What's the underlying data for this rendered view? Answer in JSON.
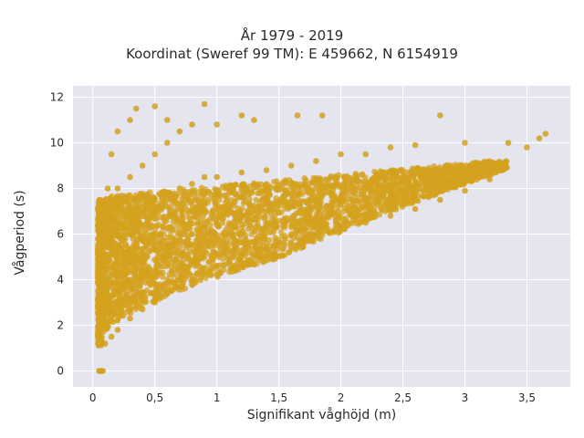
{
  "chart_data": {
    "type": "scatter",
    "title_lines": [
      "År 1979 - 2019",
      "Koordinat (Sweref 99 TM): E 459662, N 6154919"
    ],
    "xlabel": "Signifikant våghöjd (m)",
    "ylabel": "Vågperiod (s)",
    "xlim": [
      -0.16,
      3.85
    ],
    "ylim": [
      -0.7,
      12.5
    ],
    "x_ticks": [
      0,
      0.5,
      1,
      1.5,
      2,
      2.5,
      3,
      3.5
    ],
    "x_tick_labels": [
      "0",
      "0,5",
      "1",
      "1,5",
      "2",
      "2,5",
      "3",
      "3,5"
    ],
    "y_ticks": [
      0,
      2,
      4,
      6,
      8,
      10,
      12
    ],
    "y_tick_labels": [
      "0",
      "2",
      "4",
      "6",
      "8",
      "10",
      "12"
    ],
    "grid": true,
    "marker_color": "#d4a11e",
    "plot_bg": "#e5e5f0",
    "grid_color": "#ffffff",
    "point_cloud": [
      {
        "x": 0.05,
        "y": 0.0
      },
      {
        "x": 0.06,
        "y": 0.0
      },
      {
        "x": 0.07,
        "y": 0.0
      },
      {
        "x": 0.08,
        "y": 0.0
      },
      {
        "x": 0.04,
        "y": 1.6
      },
      {
        "x": 0.05,
        "y": 2.5
      },
      {
        "x": 0.06,
        "y": 4.0
      },
      {
        "x": 0.05,
        "y": 6.0
      },
      {
        "x": 0.06,
        "y": 7.5
      },
      {
        "x": 0.1,
        "y": 1.2
      },
      {
        "x": 0.1,
        "y": 2.0
      },
      {
        "x": 0.1,
        "y": 3.5
      },
      {
        "x": 0.1,
        "y": 5.0
      },
      {
        "x": 0.1,
        "y": 7.0
      },
      {
        "x": 0.12,
        "y": 8.0
      },
      {
        "x": 0.15,
        "y": 1.5
      },
      {
        "x": 0.15,
        "y": 3.0
      },
      {
        "x": 0.15,
        "y": 5.5
      },
      {
        "x": 0.15,
        "y": 7.5
      },
      {
        "x": 0.15,
        "y": 9.5
      },
      {
        "x": 0.2,
        "y": 1.8
      },
      {
        "x": 0.2,
        "y": 3.5
      },
      {
        "x": 0.2,
        "y": 6.0
      },
      {
        "x": 0.2,
        "y": 8.0
      },
      {
        "x": 0.2,
        "y": 10.5
      },
      {
        "x": 0.3,
        "y": 2.3
      },
      {
        "x": 0.3,
        "y": 4.0
      },
      {
        "x": 0.3,
        "y": 6.5
      },
      {
        "x": 0.3,
        "y": 8.5
      },
      {
        "x": 0.3,
        "y": 11.0
      },
      {
        "x": 0.4,
        "y": 2.7
      },
      {
        "x": 0.4,
        "y": 5.0
      },
      {
        "x": 0.4,
        "y": 7.0
      },
      {
        "x": 0.4,
        "y": 9.0
      },
      {
        "x": 0.35,
        "y": 11.5
      },
      {
        "x": 0.5,
        "y": 3.0
      },
      {
        "x": 0.5,
        "y": 5.5
      },
      {
        "x": 0.5,
        "y": 7.5
      },
      {
        "x": 0.5,
        "y": 9.5
      },
      {
        "x": 0.5,
        "y": 11.6
      },
      {
        "x": 0.6,
        "y": 3.4
      },
      {
        "x": 0.6,
        "y": 5.5
      },
      {
        "x": 0.6,
        "y": 7.8
      },
      {
        "x": 0.6,
        "y": 10.0
      },
      {
        "x": 0.6,
        "y": 11.0
      },
      {
        "x": 0.7,
        "y": 3.7
      },
      {
        "x": 0.7,
        "y": 6.0
      },
      {
        "x": 0.7,
        "y": 8.0
      },
      {
        "x": 0.7,
        "y": 10.5
      },
      {
        "x": 0.8,
        "y": 4.0
      },
      {
        "x": 0.8,
        "y": 6.0
      },
      {
        "x": 0.8,
        "y": 8.2
      },
      {
        "x": 0.8,
        "y": 10.8
      },
      {
        "x": 0.9,
        "y": 4.3
      },
      {
        "x": 0.9,
        "y": 6.3
      },
      {
        "x": 0.9,
        "y": 8.5
      },
      {
        "x": 0.9,
        "y": 11.7
      },
      {
        "x": 1.0,
        "y": 4.6
      },
      {
        "x": 1.0,
        "y": 6.5
      },
      {
        "x": 1.0,
        "y": 8.5
      },
      {
        "x": 1.0,
        "y": 10.8
      },
      {
        "x": 1.2,
        "y": 5.0
      },
      {
        "x": 1.2,
        "y": 6.8
      },
      {
        "x": 1.2,
        "y": 8.7
      },
      {
        "x": 1.2,
        "y": 11.2
      },
      {
        "x": 1.4,
        "y": 5.3
      },
      {
        "x": 1.4,
        "y": 7.0
      },
      {
        "x": 1.4,
        "y": 8.8
      },
      {
        "x": 1.3,
        "y": 11.0
      },
      {
        "x": 1.6,
        "y": 5.6
      },
      {
        "x": 1.6,
        "y": 7.2
      },
      {
        "x": 1.6,
        "y": 9.0
      },
      {
        "x": 1.65,
        "y": 11.2
      },
      {
        "x": 1.8,
        "y": 5.9
      },
      {
        "x": 1.8,
        "y": 7.4
      },
      {
        "x": 1.8,
        "y": 9.2
      },
      {
        "x": 1.85,
        "y": 11.2
      },
      {
        "x": 2.0,
        "y": 6.2
      },
      {
        "x": 2.0,
        "y": 7.5
      },
      {
        "x": 2.0,
        "y": 9.5
      },
      {
        "x": 2.2,
        "y": 6.5
      },
      {
        "x": 2.2,
        "y": 7.6
      },
      {
        "x": 2.2,
        "y": 9.5
      },
      {
        "x": 2.4,
        "y": 6.8
      },
      {
        "x": 2.4,
        "y": 7.8
      },
      {
        "x": 2.4,
        "y": 9.8
      },
      {
        "x": 2.6,
        "y": 7.1
      },
      {
        "x": 2.6,
        "y": 8.0
      },
      {
        "x": 2.6,
        "y": 9.9
      },
      {
        "x": 2.8,
        "y": 7.5
      },
      {
        "x": 2.8,
        "y": 8.2
      },
      {
        "x": 2.8,
        "y": 11.2
      },
      {
        "x": 3.0,
        "y": 7.9
      },
      {
        "x": 3.0,
        "y": 8.5
      },
      {
        "x": 3.0,
        "y": 10.0
      },
      {
        "x": 3.2,
        "y": 8.4
      },
      {
        "x": 3.2,
        "y": 9.0
      },
      {
        "x": 3.3,
        "y": 8.8
      },
      {
        "x": 3.35,
        "y": 10.0
      },
      {
        "x": 3.5,
        "y": 9.8
      },
      {
        "x": 3.6,
        "y": 10.2
      },
      {
        "x": 3.65,
        "y": 10.4
      }
    ]
  }
}
